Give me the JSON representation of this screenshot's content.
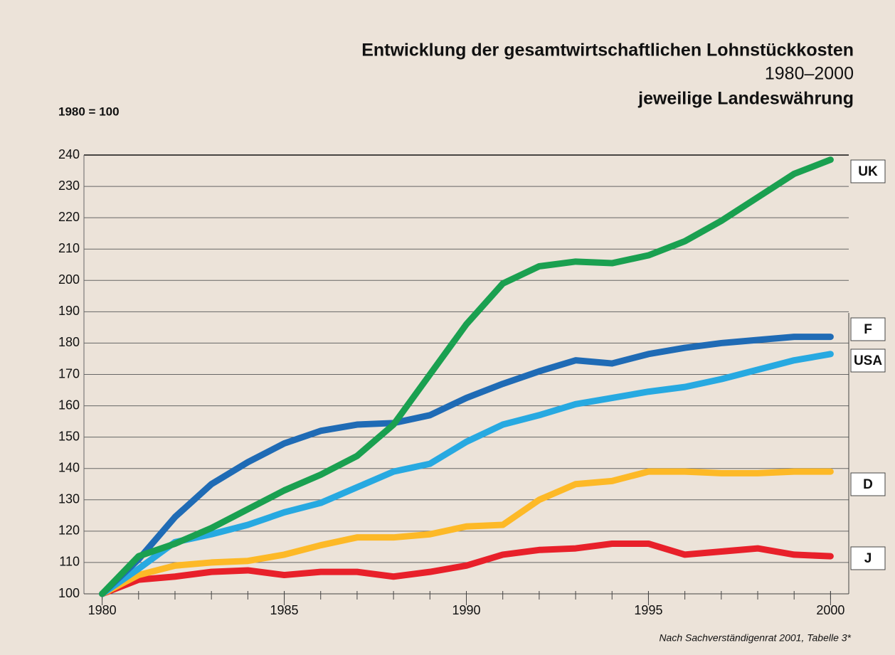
{
  "chart_data": {
    "type": "line",
    "title": "Entwicklung der gesamtwirtschaftlichen Lohnstückkosten",
    "subtitle": "1980–2000",
    "subtitle2": "jeweilige Landeswährung",
    "y_label": "1980 = 100",
    "source": "Nach Sachverständigenrat 2001, Tabelle 3*",
    "x": [
      1980,
      1981,
      1982,
      1983,
      1984,
      1985,
      1986,
      1987,
      1988,
      1989,
      1990,
      1991,
      1992,
      1993,
      1994,
      1995,
      1996,
      1997,
      1998,
      1999,
      2000
    ],
    "series": [
      {
        "name": "UK",
        "color": "#1aa050",
        "values": [
          100,
          112,
          116,
          121,
          127,
          133,
          138,
          144,
          154,
          170,
          186,
          199,
          204.5,
          206,
          205.5,
          208,
          212.5,
          219,
          226.5,
          234,
          238.5
        ]
      },
      {
        "name": "F",
        "color": "#1f6bb5",
        "values": [
          100,
          111,
          124.5,
          135,
          142,
          148,
          152,
          154,
          154.5,
          157,
          162.5,
          167,
          171,
          174.5,
          173.5,
          176.5,
          178.5,
          180,
          181,
          182,
          182
        ]
      },
      {
        "name": "USA",
        "color": "#27a9e1",
        "values": [
          100,
          108,
          116.5,
          119,
          122,
          126,
          129,
          134,
          139,
          141.5,
          148.5,
          154,
          157,
          160.5,
          162.5,
          164.5,
          166,
          168.5,
          171.5,
          174.5,
          176.5
        ]
      },
      {
        "name": "D",
        "color": "#fdb927",
        "values": [
          100,
          106,
          109,
          110,
          110.5,
          112.5,
          115.5,
          118,
          118,
          119,
          121.5,
          122,
          130,
          135,
          136,
          139,
          139,
          138.5,
          138.5,
          139,
          139
        ]
      },
      {
        "name": "J",
        "color": "#e8202a",
        "values": [
          100,
          104.5,
          105.5,
          107,
          107.5,
          106,
          107,
          107,
          105.5,
          107,
          109,
          112.5,
          114,
          114.5,
          116,
          116,
          112.5,
          113.5,
          114.5,
          112.5,
          112
        ]
      }
    ],
    "xlim": [
      1979.5,
      2000.5
    ],
    "xticks": [
      1980,
      1985,
      1990,
      1995,
      2000
    ],
    "ylim": [
      100,
      240
    ],
    "yticks": [
      100,
      110,
      120,
      130,
      140,
      150,
      160,
      170,
      180,
      190,
      200,
      210,
      220,
      230,
      240
    ],
    "grid": true
  }
}
